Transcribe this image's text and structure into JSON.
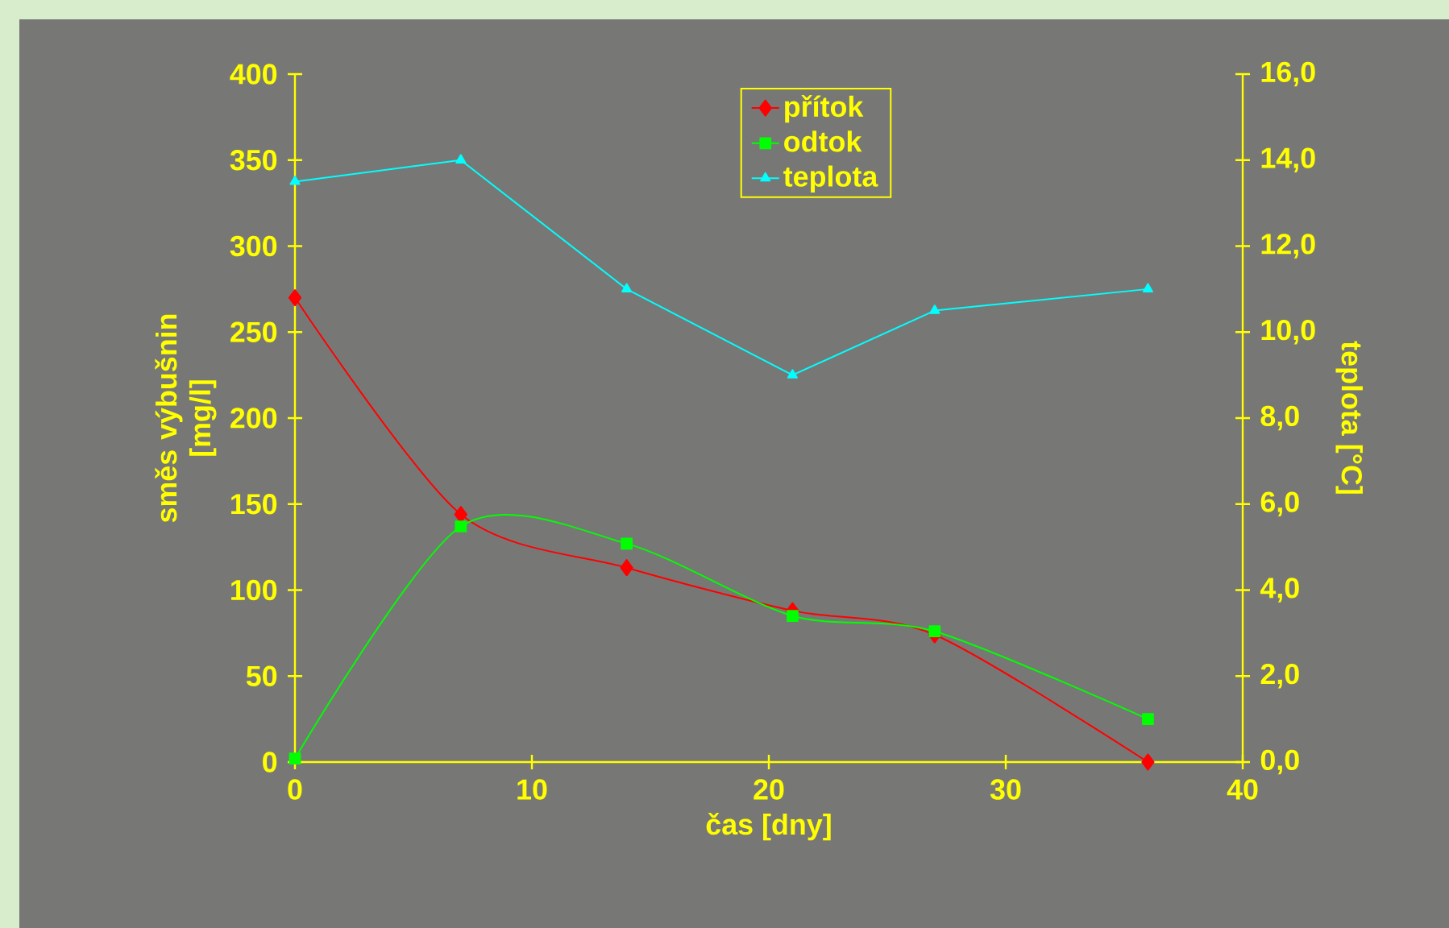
{
  "chart_data": {
    "type": "line",
    "xlabel": "čas [dny]",
    "ylabel": "směs výbušnin [mg/l]",
    "y2label": "teplota [°C]",
    "x": [
      0,
      7,
      14,
      21,
      27,
      36
    ],
    "series": [
      {
        "name": "přítok",
        "color": "#ff0000",
        "marker": "diamond",
        "values": [
          270,
          144,
          113,
          88,
          74,
          0
        ]
      },
      {
        "name": "odtok",
        "color": "#00ff00",
        "marker": "square",
        "values": [
          2,
          137,
          127,
          85,
          76,
          25
        ]
      },
      {
        "name": "teplota",
        "color": "#00ffff",
        "marker": "triangle",
        "axis": "y2",
        "values": [
          13.5,
          14.0,
          11.0,
          9.0,
          10.5,
          11.0
        ]
      }
    ],
    "xlim": [
      0,
      40
    ],
    "xticks": [
      0,
      10,
      20,
      30,
      40
    ],
    "ylim": [
      0,
      400
    ],
    "yticks": [
      0,
      50,
      100,
      150,
      200,
      250,
      300,
      350,
      400
    ],
    "y2lim": [
      0,
      16
    ],
    "y2ticks": [
      {
        "value": 0,
        "label": "0,0"
      },
      {
        "value": 2,
        "label": "2,0"
      },
      {
        "value": 4,
        "label": "4,0"
      },
      {
        "value": 6,
        "label": "6,0"
      },
      {
        "value": 8,
        "label": "8,0"
      },
      {
        "value": 10,
        "label": "10,0"
      },
      {
        "value": 12,
        "label": "12,0"
      },
      {
        "value": 14,
        "label": "14,0"
      },
      {
        "value": 16,
        "label": "16,0"
      }
    ],
    "grid": false,
    "legend": "top"
  }
}
